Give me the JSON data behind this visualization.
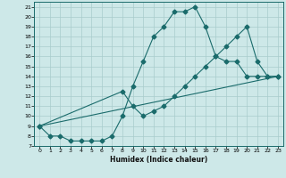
{
  "xlabel": "Humidex (Indice chaleur)",
  "xlim": [
    -0.5,
    23.5
  ],
  "ylim": [
    7,
    21.5
  ],
  "xticks": [
    0,
    1,
    2,
    3,
    4,
    5,
    6,
    7,
    8,
    9,
    10,
    11,
    12,
    13,
    14,
    15,
    16,
    17,
    18,
    19,
    20,
    21,
    22,
    23
  ],
  "yticks": [
    7,
    8,
    9,
    10,
    11,
    12,
    13,
    14,
    15,
    16,
    17,
    18,
    19,
    20,
    21
  ],
  "bg_color": "#cde8e8",
  "grid_color": "#a8cccc",
  "line_color": "#1a6b6b",
  "line1_x": [
    0,
    1,
    2,
    3,
    4,
    5,
    6,
    7,
    8,
    9,
    10,
    11,
    12,
    13,
    14,
    15,
    16,
    17,
    18,
    19,
    20,
    21,
    22,
    23
  ],
  "line1_y": [
    9,
    8,
    8,
    7.5,
    7.5,
    7.5,
    7.5,
    8,
    10,
    13,
    15.5,
    18,
    19,
    20.5,
    20.5,
    21,
    19,
    16,
    15.5,
    15.5,
    14,
    14,
    14,
    14
  ],
  "line2_x": [
    0,
    8,
    9,
    10,
    11,
    12,
    13,
    14,
    15,
    16,
    17,
    18,
    19,
    20,
    21,
    22,
    23
  ],
  "line2_y": [
    9,
    12.5,
    11,
    10,
    10.5,
    11,
    12,
    13,
    14,
    15,
    16,
    17,
    18,
    19,
    15.5,
    14,
    14
  ],
  "line3_x": [
    0,
    23
  ],
  "line3_y": [
    9,
    14
  ]
}
